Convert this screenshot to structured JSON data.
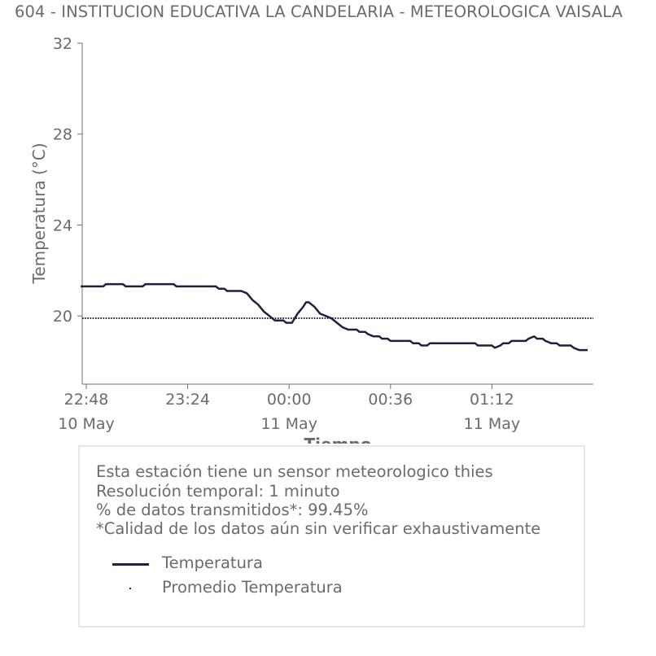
{
  "title": "604 - INSTITUCION EDUCATIVA LA CANDELARIA - METEOROLOGICA VAISALA",
  "chart_data": {
    "type": "line",
    "ylabel": "Temperatura (°C)",
    "xlabel": "Tiempo",
    "ylim": [
      17,
      32
    ],
    "yticks": [
      20,
      24,
      28,
      32
    ],
    "xlim": [
      "2024-05-10 22:48",
      "2024-05-11 01:48"
    ],
    "xticks": [
      {
        "time": "22:48",
        "date": "10 May"
      },
      {
        "time": "23:24",
        "date": ""
      },
      {
        "time": "00:00",
        "date": "11 May"
      },
      {
        "time": "00:36",
        "date": ""
      },
      {
        "time": "01:12",
        "date": "11 May"
      }
    ],
    "grid": false,
    "series": [
      {
        "name": "Temperatura",
        "style": "line",
        "color": "#1f2040",
        "points": [
          [
            "2024-05-10 22:46",
            21.3
          ],
          [
            "2024-05-10 22:54",
            21.3
          ],
          [
            "2024-05-10 22:55",
            21.4
          ],
          [
            "2024-05-10 23:01",
            21.4
          ],
          [
            "2024-05-10 23:02",
            21.3
          ],
          [
            "2024-05-10 23:08",
            21.3
          ],
          [
            "2024-05-10 23:09",
            21.4
          ],
          [
            "2024-05-10 23:19",
            21.4
          ],
          [
            "2024-05-10 23:20",
            21.3
          ],
          [
            "2024-05-10 23:34",
            21.3
          ],
          [
            "2024-05-10 23:35",
            21.2
          ],
          [
            "2024-05-10 23:37",
            21.2
          ],
          [
            "2024-05-10 23:38",
            21.1
          ],
          [
            "2024-05-10 23:43",
            21.1
          ],
          [
            "2024-05-10 23:45",
            21.0
          ],
          [
            "2024-05-10 23:47",
            20.7
          ],
          [
            "2024-05-10 23:49",
            20.5
          ],
          [
            "2024-05-10 23:51",
            20.2
          ],
          [
            "2024-05-10 23:53",
            20.0
          ],
          [
            "2024-05-10 23:55",
            19.8
          ],
          [
            "2024-05-10 23:58",
            19.8
          ],
          [
            "2024-05-10 23:59",
            19.7
          ],
          [
            "2024-05-11 00:01",
            19.7
          ],
          [
            "2024-05-11 00:03",
            20.1
          ],
          [
            "2024-05-11 00:05",
            20.4
          ],
          [
            "2024-05-11 00:06",
            20.6
          ],
          [
            "2024-05-11 00:07",
            20.6
          ],
          [
            "2024-05-11 00:09",
            20.4
          ],
          [
            "2024-05-11 00:11",
            20.1
          ],
          [
            "2024-05-11 00:13",
            20.0
          ],
          [
            "2024-05-11 00:15",
            19.9
          ],
          [
            "2024-05-11 00:17",
            19.7
          ],
          [
            "2024-05-11 00:19",
            19.5
          ],
          [
            "2024-05-11 00:21",
            19.4
          ],
          [
            "2024-05-11 00:24",
            19.4
          ],
          [
            "2024-05-11 00:25",
            19.3
          ],
          [
            "2024-05-11 00:27",
            19.3
          ],
          [
            "2024-05-11 00:28",
            19.2
          ],
          [
            "2024-05-11 00:30",
            19.1
          ],
          [
            "2024-05-11 00:32",
            19.1
          ],
          [
            "2024-05-11 00:33",
            19.0
          ],
          [
            "2024-05-11 00:35",
            19.0
          ],
          [
            "2024-05-11 00:36",
            18.9
          ],
          [
            "2024-05-11 00:43",
            18.9
          ],
          [
            "2024-05-11 00:44",
            18.8
          ],
          [
            "2024-05-11 00:46",
            18.8
          ],
          [
            "2024-05-11 00:47",
            18.7
          ],
          [
            "2024-05-11 00:49",
            18.7
          ],
          [
            "2024-05-11 00:50",
            18.8
          ],
          [
            "2024-05-11 01:06",
            18.8
          ],
          [
            "2024-05-11 01:07",
            18.7
          ],
          [
            "2024-05-11 01:12",
            18.7
          ],
          [
            "2024-05-11 01:13",
            18.6
          ],
          [
            "2024-05-11 01:15",
            18.7
          ],
          [
            "2024-05-11 01:16",
            18.8
          ],
          [
            "2024-05-11 01:18",
            18.8
          ],
          [
            "2024-05-11 01:19",
            18.9
          ],
          [
            "2024-05-11 01:24",
            18.9
          ],
          [
            "2024-05-11 01:25",
            19.0
          ],
          [
            "2024-05-11 01:27",
            19.1
          ],
          [
            "2024-05-11 01:28",
            19.0
          ],
          [
            "2024-05-11 01:30",
            19.0
          ],
          [
            "2024-05-11 01:31",
            18.9
          ],
          [
            "2024-05-11 01:33",
            18.8
          ],
          [
            "2024-05-11 01:35",
            18.8
          ],
          [
            "2024-05-11 01:36",
            18.7
          ],
          [
            "2024-05-11 01:40",
            18.7
          ],
          [
            "2024-05-11 01:41",
            18.6
          ],
          [
            "2024-05-11 01:43",
            18.5
          ],
          [
            "2024-05-11 01:46",
            18.5
          ]
        ]
      },
      {
        "name": "Promedio Temperatura",
        "style": "dotted",
        "color": "#1f2040",
        "value": 19.9
      }
    ]
  },
  "info": {
    "line1": "Esta estación tiene un sensor meteorologico thies",
    "line2": "Resolución temporal: 1 minuto",
    "line3": "% de datos transmitidos*: 99.45%",
    "line4": "*Calidad de los datos aún sin verificar exhaustivamente"
  },
  "legend": {
    "item1": "Temperatura",
    "item2": "Promedio Temperatura"
  },
  "colors": {
    "series": "#1f2040",
    "text": "#6b6b6b",
    "axis": "#707070",
    "box_border": "#e6e6e6"
  }
}
